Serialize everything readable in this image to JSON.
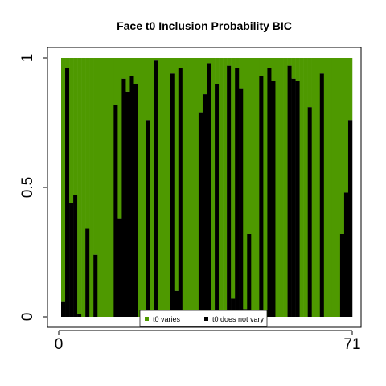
{
  "chart_data": {
    "type": "bar",
    "stacked": true,
    "title": "Face t0 Inclusion Probability BIC",
    "xlabel": "",
    "ylabel": "",
    "x_ticks": [
      "0",
      "71"
    ],
    "y_ticks": [
      "0",
      "0.5",
      "1"
    ],
    "xlim": [
      0,
      71
    ],
    "ylim": [
      0,
      1
    ],
    "colors": {
      "varies": "#4e9900",
      "not_varies": "#000000"
    },
    "legend": {
      "position": "bottom-center",
      "items": [
        {
          "label": "t0 varies",
          "color": "#4e9900"
        },
        {
          "label": "t0 does not vary",
          "color": "#000000"
        }
      ]
    },
    "series": [
      {
        "name": "t0 does not vary",
        "values": [
          0.06,
          0.96,
          0.44,
          0.47,
          0.01,
          0.0,
          0.34,
          0.0,
          0.24,
          0.0,
          0.0,
          0.0,
          0.0,
          0.82,
          0.38,
          0.92,
          0.87,
          0.93,
          0.9,
          0.0,
          0.0,
          0.76,
          0.0,
          0.99,
          0.0,
          0.0,
          0.0,
          0.94,
          0.1,
          0.96,
          0.0,
          0.0,
          0.0,
          0.0,
          0.79,
          0.86,
          0.98,
          0.0,
          0.9,
          0.0,
          0.0,
          0.97,
          0.07,
          0.96,
          0.88,
          0.03,
          0.32,
          0.0,
          0.0,
          0.93,
          0.0,
          0.96,
          0.91,
          0.0,
          0.0,
          0.0,
          0.97,
          0.92,
          0.91,
          0.0,
          0.0,
          0.81,
          0.0,
          0.0,
          0.94,
          0.0,
          0.0,
          0.0,
          0.0,
          0.32,
          0.48,
          0.76
        ]
      }
    ]
  }
}
